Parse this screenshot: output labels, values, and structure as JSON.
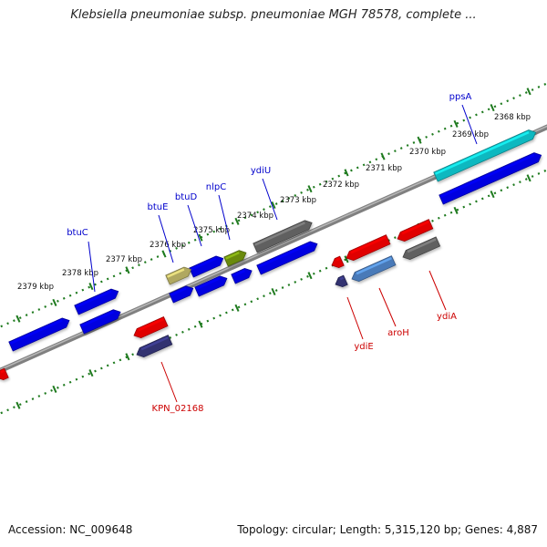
{
  "title": "Klebsiella pneumoniae subsp. pneumoniae MGH 78578, complete ...",
  "footer": {
    "accession": "Accession: NC_009648",
    "summary": "Topology: circular; Length: 5,315,120 bp; Genes: 4,887"
  },
  "ruler": {
    "unit": "kbp",
    "labels": [
      "2368 kbp",
      "2369 kbp",
      "2370 kbp",
      "2371 kbp",
      "2372 kbp",
      "2373 kbp",
      "2374 kbp",
      "2375 kbp",
      "2376 kbp",
      "2377 kbp",
      "2378 kbp",
      "2379 kbp"
    ]
  },
  "forward_gene_labels": [
    "ppsA",
    "ydiU",
    "nlpC",
    "btuD",
    "btuE",
    "btuC"
  ],
  "reverse_gene_labels": [
    "ydiA",
    "aroH",
    "ydiE",
    "KPN_02168"
  ],
  "colors": {
    "forward_label": "#0000cc",
    "reverse_label": "#cc0000",
    "backbone": "#808080",
    "ruler_ticks": "#1e7a1e",
    "gene_blue": "#0000e0",
    "gene_red": "#e00000",
    "gene_gray": "#606060",
    "gene_cyan": "#10b8c0",
    "gene_olive": "#b0a860",
    "gene_green": "#6a8a10",
    "gene_steel": "#4a7ab8",
    "gene_navy": "#303070"
  },
  "icons": [
    "gene-arrow-forward-icon",
    "gene-arrow-reverse-icon"
  ]
}
